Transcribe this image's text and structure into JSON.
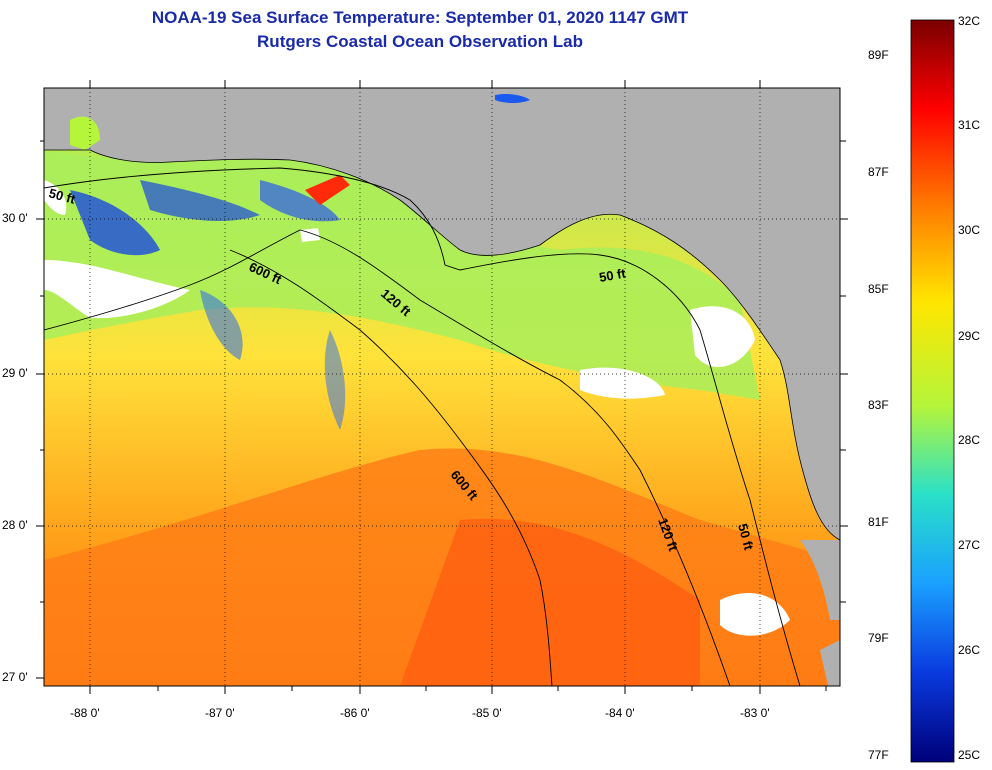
{
  "title_line1": "NOAA-19 Sea Surface Temperature:  September 01, 2020 1147 GMT",
  "title_line2": "Rutgers Coastal Ocean Observation Lab",
  "lat_labels": [
    "30 0'",
    "29 0'",
    "28 0'",
    "27 0'"
  ],
  "lon_labels": [
    "-88 0'",
    "-87 0'",
    "-86 0'",
    "-85 0'",
    "-84 0'",
    "-83 0'"
  ],
  "colorbar": {
    "celsius": [
      "32C",
      "31C",
      "30C",
      "29C",
      "28C",
      "27C",
      "26C",
      "25C"
    ],
    "fahrenheit": [
      "89F",
      "87F",
      "85F",
      "83F",
      "81F",
      "79F",
      "77F"
    ],
    "colors": [
      "#7a0000",
      "#ff0000",
      "#ff7a00",
      "#ffe600",
      "#b5f53a",
      "#29e0c8",
      "#1aa0ff",
      "#0a3adf",
      "#00007a"
    ]
  },
  "contours": {
    "label_600": "600 ft",
    "label_120": "120 ft",
    "label_50": "50 ft"
  },
  "colors": {
    "land": "#b0b0b0",
    "cloud": "#ffffff",
    "title": "#1a2aa8"
  }
}
